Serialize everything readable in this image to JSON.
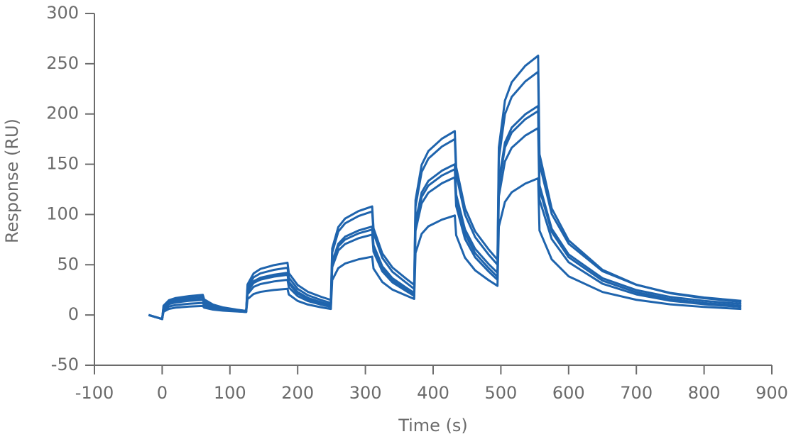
{
  "chart_data": {
    "type": "line",
    "x_label": "Time (s)",
    "y_label": "Response (RU)",
    "xlim": [
      -100,
      900
    ],
    "xticks": [
      -100,
      0,
      100,
      200,
      300,
      400,
      500,
      600,
      700,
      800,
      900
    ],
    "ylim": [
      -50,
      300
    ],
    "yticks": [
      -50,
      0,
      50,
      100,
      150,
      200,
      250,
      300
    ],
    "grid": false,
    "x": [
      -20,
      0,
      2,
      10,
      20,
      40,
      60,
      62,
      75,
      90,
      110,
      124,
      126,
      135,
      145,
      165,
      185,
      187,
      200,
      215,
      235,
      249,
      251,
      260,
      270,
      290,
      310,
      312,
      325,
      340,
      360,
      372,
      374,
      383,
      393,
      413,
      432,
      434,
      447,
      462,
      482,
      495,
      497,
      506,
      516,
      536,
      555,
      557,
      575,
      600,
      650,
      700,
      750,
      800,
      855
    ],
    "series": [
      {
        "color": "#1f64ad",
        "values": [
          0,
          -4,
          9.2,
          14.7,
          16.9,
          18.8,
          20,
          15.5,
          10.4,
          7.5,
          5.3,
          4,
          30.4,
          41.4,
          45.8,
          49.6,
          52,
          41.6,
          29.8,
          23.1,
          18,
          15,
          66.2,
          87.5,
          95.9,
          103.4,
          108,
          86.2,
          61.2,
          47.2,
          36.2,
          30,
          114.2,
          149.3,
          163.1,
          175.4,
          183,
          147.2,
          106.2,
          83.2,
          65.2,
          55,
          166.7,
          213.3,
          231.6,
          247.9,
          258,
          160,
          106.1,
          74.3,
          44.9,
          30.2,
          21.6,
          16.7,
          13
        ]
      },
      {
        "color": "#1f64ad",
        "values": [
          0,
          -4,
          8.1,
          13.2,
          15.1,
          16.9,
          18,
          14.1,
          9.6,
          7.1,
          5.1,
          4,
          27.7,
          37.5,
          41.4,
          44.9,
          47,
          37.2,
          26,
          19.7,
          14.8,
          12,
          62.1,
          83,
          91.2,
          98.5,
          103,
          81.4,
          56.8,
          42.9,
          32.2,
          26,
          108,
          142.2,
          155.6,
          167.6,
          175,
          140,
          100,
          77.5,
          60,
          50,
          155.6,
          199.8,
          217,
          232.4,
          242,
          150.8,
          100.6,
          71,
          43.6,
          30,
          22,
          17.4,
          14
        ]
      },
      {
        "color": "#1f64ad",
        "values": [
          0,
          -4,
          7,
          11.6,
          13.4,
          15,
          16,
          12.6,
          8.8,
          6.6,
          5,
          4,
          24.9,
          33.6,
          37.1,
          40.1,
          42,
          33,
          22.8,
          17,
          12.6,
          10,
          52.9,
          70.8,
          77.9,
          84.1,
          88,
          69.5,
          48.4,
          36.5,
          27.3,
          22,
          92.4,
          121.8,
          133.4,
          143.6,
          150,
          119.8,
          85.2,
          65.8,
          50.6,
          42,
          133.3,
          171.5,
          186.4,
          199.7,
          208,
          129.2,
          85.9,
          60.3,
          36.6,
          24.8,
          17.9,
          14,
          11
        ]
      },
      {
        "color": "#1f64ad",
        "values": [
          0,
          -4,
          6.5,
          10.8,
          12.5,
          14.1,
          15,
          11.6,
          7.8,
          5.6,
          4,
          3,
          23.4,
          31.9,
          35.2,
          38.2,
          40,
          31.3,
          21.4,
          15.8,
          11.5,
          9,
          50.8,
          68.3,
          75.1,
          81.2,
          85,
          66.8,
          46,
          34.3,
          25.2,
          20,
          88.8,
          117.5,
          128.8,
          138.8,
          145,
          115,
          80.8,
          61.5,
          46.6,
          38,
          128.8,
          166.7,
          181.6,
          194.8,
          203,
          125.4,
          82.7,
          57.5,
          34.2,
          22.6,
          15.8,
          11.9,
          9
        ]
      },
      {
        "color": "#1f64ad",
        "values": [
          0,
          -4,
          4.8,
          8.5,
          9.9,
          11.2,
          12,
          9.5,
          6.6,
          5,
          3.7,
          3,
          20.6,
          28,
          30.8,
          33.4,
          35,
          27.4,
          18.8,
          13.9,
          10.2,
          8,
          47.6,
          64.2,
          70.6,
          76.4,
          80,
          62.9,
          43.4,
          32.4,
          23.9,
          19,
          83.9,
          111,
          121.7,
          131.1,
          137,
          108.4,
          75.8,
          57.4,
          43.2,
          35,
          118.1,
          152.8,
          166.4,
          178.5,
          186,
          114.8,
          75.6,
          52.5,
          31.1,
          20.5,
          14.2,
          10.7,
          8
        ]
      },
      {
        "color": "#1f64ad",
        "values": [
          0,
          -4,
          3.2,
          6.1,
          7.3,
          8.4,
          9,
          7.3,
          5.4,
          4.3,
          3.5,
          3,
          15.7,
          20.9,
          23,
          24.9,
          26,
          20.4,
          14,
          10.4,
          7.6,
          6,
          34.6,
          46.6,
          51.2,
          55.4,
          58,
          46.2,
          32.8,
          25.2,
          19.4,
          16,
          61.7,
          80.7,
          88.2,
          94.9,
          99,
          79.4,
          57,
          44.4,
          34.6,
          29,
          87.9,
          112.5,
          122.1,
          130.7,
          136,
          84,
          55.4,
          38.5,
          22.9,
          15.1,
          10.6,
          8,
          6
        ]
      }
    ]
  }
}
